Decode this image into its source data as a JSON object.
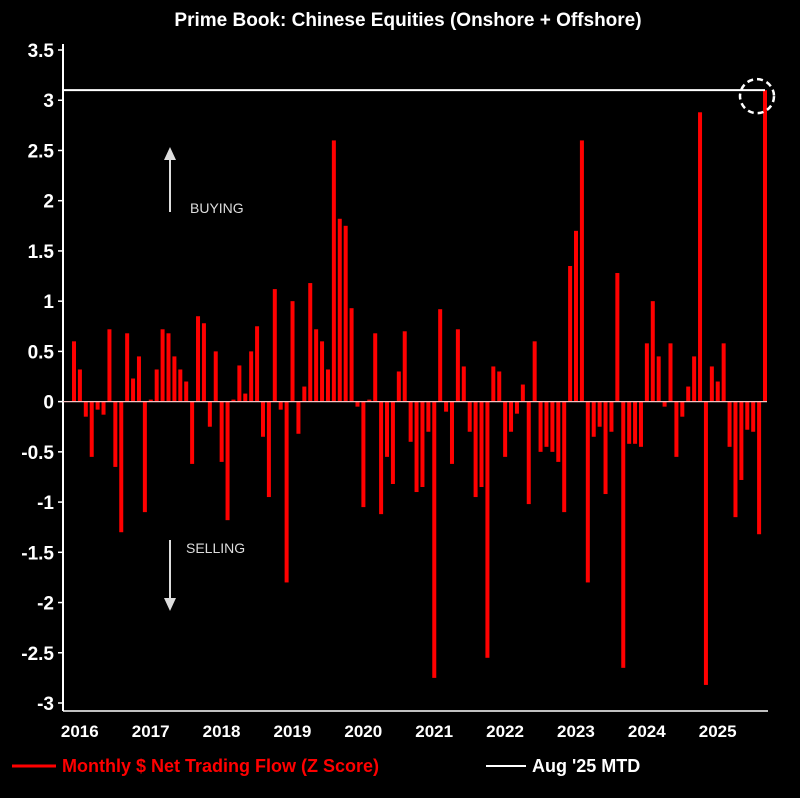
{
  "chart_data": {
    "type": "bar",
    "title": "Prime Book: Chinese Equities (Onshore + Offshore)",
    "xlabel": "",
    "ylabel": "",
    "ylim": [
      -3,
      3.5
    ],
    "yticks": [
      "3.5",
      "3",
      "2.5",
      "2",
      "1.5",
      "1",
      "0.5",
      "0",
      "-0.5",
      "-1",
      "-1.5",
      "-2",
      "-2.5",
      "-3"
    ],
    "xticks": [
      "2016",
      "2017",
      "2018",
      "2019",
      "2020",
      "2021",
      "2022",
      "2023",
      "2024",
      "2025"
    ],
    "grid": false,
    "legend_placement": "bottom",
    "colors": {
      "bars": "#ff0000",
      "reference_line": "#ffffff",
      "background": "#000000"
    },
    "annotations": {
      "buying": "BUYING",
      "selling": "SELLING"
    },
    "reference_line": {
      "name": "Aug '25 MTD",
      "value": 3.1
    },
    "series": [
      {
        "name": "Monthly $ Net Trading Flow (Z Score)"
      }
    ],
    "categories": [
      "2015-11",
      "2015-12",
      "2016-01",
      "2016-02",
      "2016-03",
      "2016-04",
      "2016-05",
      "2016-06",
      "2016-07",
      "2016-08",
      "2016-09",
      "2016-10",
      "2016-11",
      "2016-12",
      "2017-01",
      "2017-02",
      "2017-03",
      "2017-04",
      "2017-05",
      "2017-06",
      "2017-07",
      "2017-08",
      "2017-09",
      "2017-10",
      "2017-11",
      "2017-12",
      "2018-01",
      "2018-02",
      "2018-03",
      "2018-04",
      "2018-05",
      "2018-06",
      "2018-07",
      "2018-08",
      "2018-09",
      "2018-10",
      "2018-11",
      "2018-12",
      "2019-01",
      "2019-02",
      "2019-03",
      "2019-04",
      "2019-05",
      "2019-06",
      "2019-07",
      "2019-08",
      "2019-09",
      "2019-10",
      "2019-11",
      "2019-12",
      "2020-01",
      "2020-02",
      "2020-03",
      "2020-04",
      "2020-05",
      "2020-06",
      "2020-07",
      "2020-08",
      "2020-09",
      "2020-10",
      "2020-11",
      "2020-12",
      "2021-01",
      "2021-02",
      "2021-03",
      "2021-04",
      "2021-05",
      "2021-06",
      "2021-07",
      "2021-08",
      "2021-09",
      "2021-10",
      "2021-11",
      "2021-12",
      "2022-01",
      "2022-02",
      "2022-03",
      "2022-04",
      "2022-05",
      "2022-06",
      "2022-07",
      "2022-08",
      "2022-09",
      "2022-10",
      "2022-11",
      "2022-12",
      "2023-01",
      "2023-02",
      "2023-03",
      "2023-04",
      "2023-05",
      "2023-06",
      "2023-07",
      "2023-08",
      "2023-09",
      "2023-10",
      "2023-11",
      "2023-12",
      "2024-01",
      "2024-02",
      "2024-03",
      "2024-04",
      "2024-05",
      "2024-06",
      "2024-07",
      "2024-08",
      "2024-09",
      "2024-10",
      "2024-11",
      "2024-12",
      "2025-01",
      "2025-02",
      "2025-03",
      "2025-04",
      "2025-05",
      "2025-06",
      "2025-07",
      "2025-08"
    ],
    "values": [
      0.6,
      0.32,
      -0.15,
      -0.55,
      -0.08,
      -0.13,
      0.72,
      -0.65,
      -1.3,
      0.68,
      0.23,
      0.45,
      -1.1,
      0.02,
      0.32,
      0.72,
      0.68,
      0.45,
      0.32,
      0.2,
      -0.62,
      0.85,
      0.78,
      -0.25,
      0.5,
      -0.6,
      -1.18,
      0.02,
      0.36,
      0.08,
      0.5,
      0.75,
      -0.35,
      -0.95,
      1.12,
      -0.08,
      -1.8,
      1.0,
      -0.32,
      0.15,
      1.18,
      0.72,
      0.6,
      0.32,
      2.6,
      1.82,
      1.75,
      0.93,
      -0.05,
      -1.05,
      0.02,
      0.68,
      -1.12,
      -0.55,
      -0.82,
      0.3,
      0.7,
      -0.4,
      -0.9,
      -0.85,
      -0.3,
      -2.75,
      0.92,
      -0.1,
      -0.62,
      0.72,
      0.35,
      -0.3,
      -0.95,
      -0.85,
      -2.55,
      0.35,
      0.3,
      -0.55,
      -0.3,
      -0.12,
      0.17,
      -1.02,
      0.6,
      -0.5,
      -0.45,
      -0.5,
      -0.6,
      -1.1,
      1.35,
      1.7,
      2.6,
      -1.8,
      -0.35,
      -0.25,
      -0.92,
      -0.3,
      1.28,
      -2.65,
      -0.42,
      -0.42,
      -0.45,
      0.58,
      1.0,
      0.45,
      -0.05,
      0.58,
      -0.55,
      -0.15,
      0.15,
      0.45,
      2.88,
      -2.82,
      0.35,
      0.2,
      0.58,
      -0.45,
      -1.15,
      -0.78,
      -0.28,
      -0.3,
      -1.32,
      3.1
    ],
    "highlighted": {
      "category": "2025-08",
      "marker": "dashed-circle"
    }
  }
}
